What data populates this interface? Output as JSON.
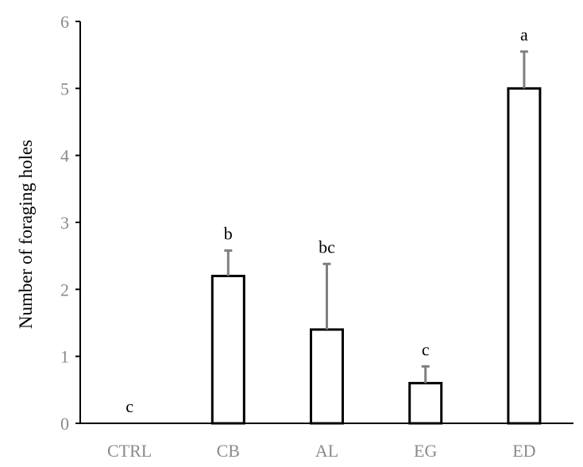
{
  "chart_data": {
    "type": "bar",
    "title": "",
    "xlabel": "",
    "ylabel": "Number of foraging holes",
    "ylim": [
      0,
      6
    ],
    "yticks": [
      0,
      1,
      2,
      3,
      4,
      5,
      6
    ],
    "grid": false,
    "legend": "none",
    "categories": [
      "CTRL",
      "CB",
      "AL",
      "EG",
      "ED"
    ],
    "values": [
      0,
      2.2,
      1.4,
      0.6,
      5.0
    ],
    "error_upper": [
      0,
      0.38,
      0.98,
      0.25,
      0.55
    ],
    "significance_labels": [
      "c",
      "b",
      "bc",
      "c",
      "a"
    ],
    "colors": {
      "bar_fill": "#ffffff",
      "bar_stroke": "#000000",
      "error_bar": "#7f7f7f",
      "axis": "#000000",
      "tick_label": "#8a8a8a"
    }
  }
}
